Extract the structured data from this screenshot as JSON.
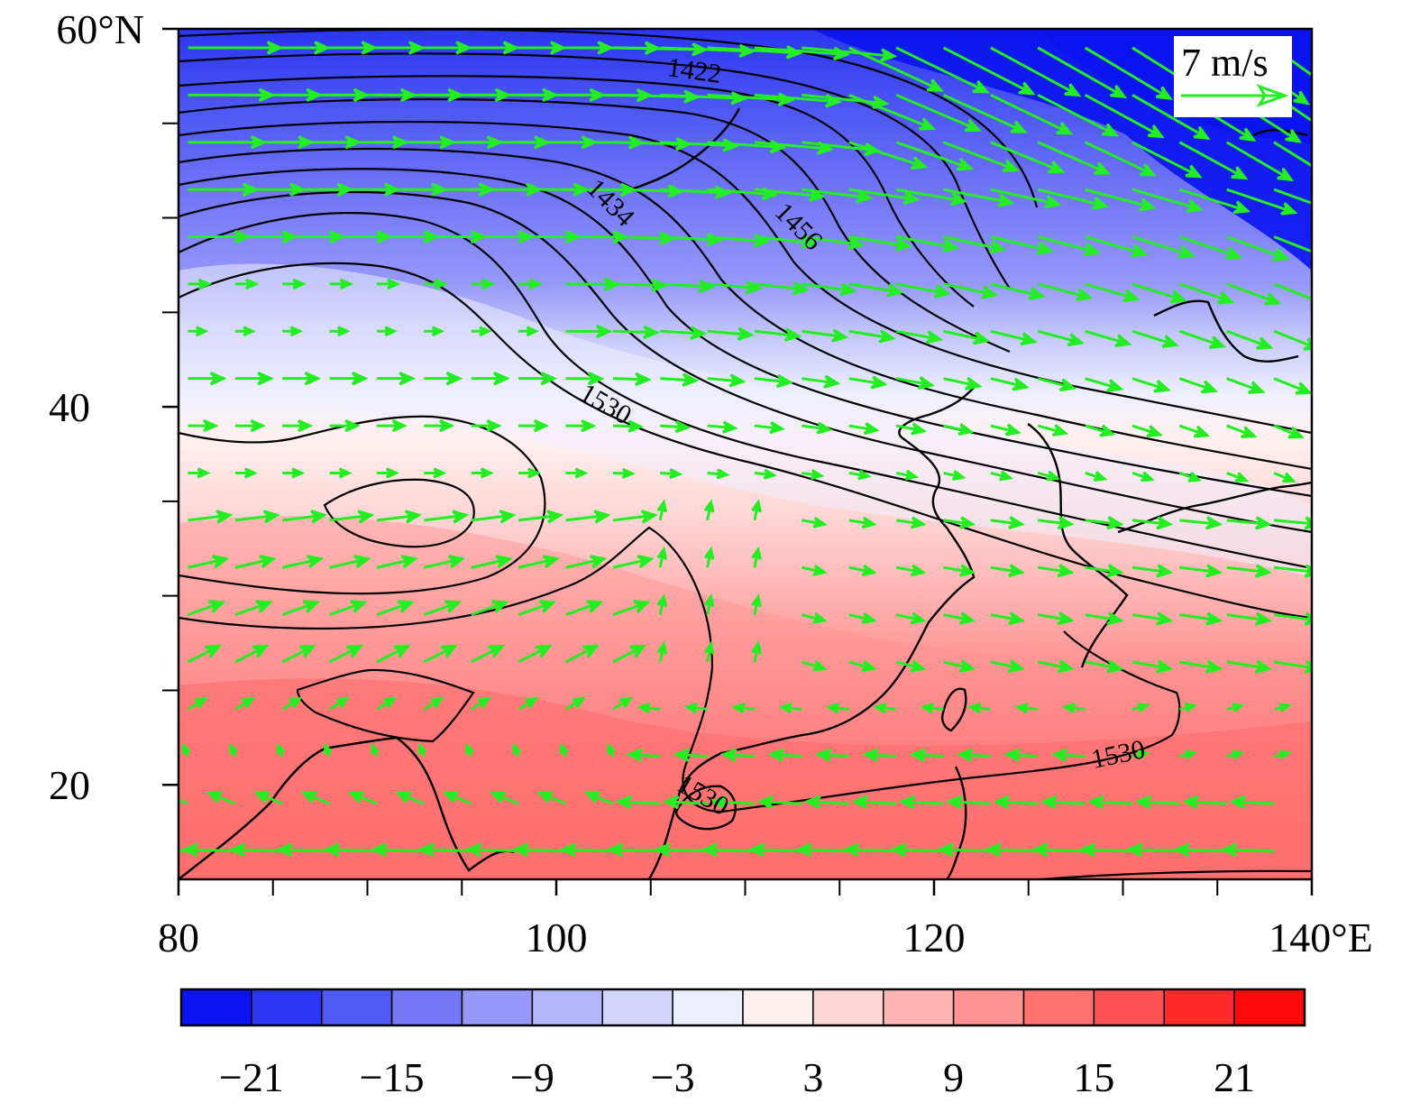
{
  "map": {
    "lon_range": [
      80,
      140
    ],
    "lat_range": [
      15,
      60
    ],
    "x_ticks": [
      {
        "lon": 80,
        "label": "80"
      },
      {
        "lon": 100,
        "label": "100"
      },
      {
        "lon": 120,
        "label": "120"
      },
      {
        "lon": 140,
        "label": "140°E"
      }
    ],
    "x_minor_lons": [
      85,
      90,
      95,
      105,
      110,
      115,
      125,
      130,
      135
    ],
    "y_ticks": [
      {
        "lat": 20,
        "label": "20"
      },
      {
        "lat": 40,
        "label": "40"
      },
      {
        "lat": 60,
        "label": "60°N"
      }
    ],
    "y_minor_lats": [
      25,
      30,
      35,
      45,
      50,
      55
    ],
    "contour_labels": [
      "1422",
      "1434",
      "1456",
      "1530",
      "1530",
      "1530"
    ],
    "vector_color": "#22ee22",
    "contour_color": "#000000",
    "coast_color": "#000000"
  },
  "reference_vector": {
    "label": "7 m/s",
    "speed_ms": 7
  },
  "colorbar": {
    "colors": [
      "#0a14f0",
      "#2a36f2",
      "#5058f4",
      "#7478f6",
      "#9699f8",
      "#b4b6fa",
      "#d3d5fc",
      "#eeeffd",
      "#fff0f0",
      "#ffd6d6",
      "#ffb4b4",
      "#ff9393",
      "#ff7272",
      "#ff5252",
      "#ff2a2a",
      "#ff0a0a"
    ],
    "tick_labels": [
      "−21",
      "−15",
      "−9",
      "−3",
      "3",
      "9",
      "15",
      "21"
    ]
  }
}
